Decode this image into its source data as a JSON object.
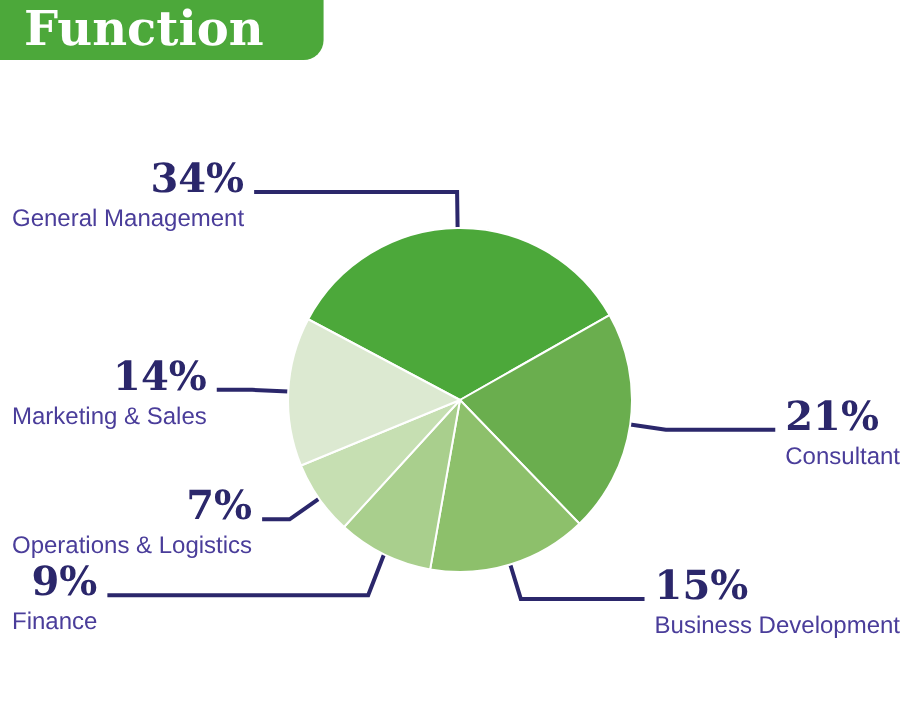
{
  "chart_data": {
    "type": "pie",
    "title": "Function",
    "categories": [
      "General Management",
      "Consultant",
      "Business Development",
      "Finance",
      "Operations & Logistics",
      "Marketing & Sales"
    ],
    "values": [
      34,
      21,
      15,
      9,
      7,
      14
    ],
    "colors": [
      "#4ca83a",
      "#6aae4e",
      "#8dc06b",
      "#a9cf8d",
      "#c6dfb2",
      "#dce9d1"
    ],
    "value_labels": [
      "34%",
      "21%",
      "15%",
      "9%",
      "7%",
      "14%"
    ],
    "legend": false
  }
}
